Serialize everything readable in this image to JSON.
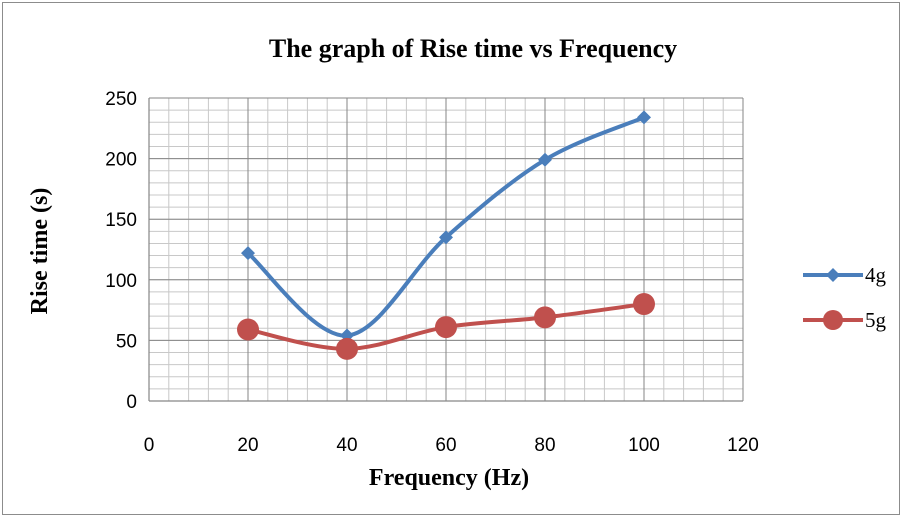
{
  "chart_data": {
    "type": "line",
    "title": "The graph of Rise time vs Frequency",
    "xlabel": "Frequency (Hz)",
    "ylabel": "Rise time (s)",
    "xlim": [
      0,
      120
    ],
    "ylim": [
      0,
      250
    ],
    "x_ticks": [
      0,
      20,
      40,
      60,
      80,
      100,
      120
    ],
    "y_ticks": [
      0,
      50,
      100,
      150,
      200,
      250
    ],
    "x_minor_step": 4,
    "y_minor_step": 10,
    "grid": true,
    "smoothed": true,
    "legend_position": "right",
    "series": [
      {
        "name": "4g",
        "marker": "diamond",
        "color": "#4a7ebb",
        "x": [
          20,
          40,
          60,
          80,
          100
        ],
        "values": [
          122,
          54,
          135,
          199,
          234
        ]
      },
      {
        "name": "5g",
        "marker": "circle",
        "color": "#c0504d",
        "x": [
          20,
          40,
          60,
          80,
          100
        ],
        "values": [
          59,
          43,
          61,
          69,
          80
        ]
      }
    ]
  }
}
